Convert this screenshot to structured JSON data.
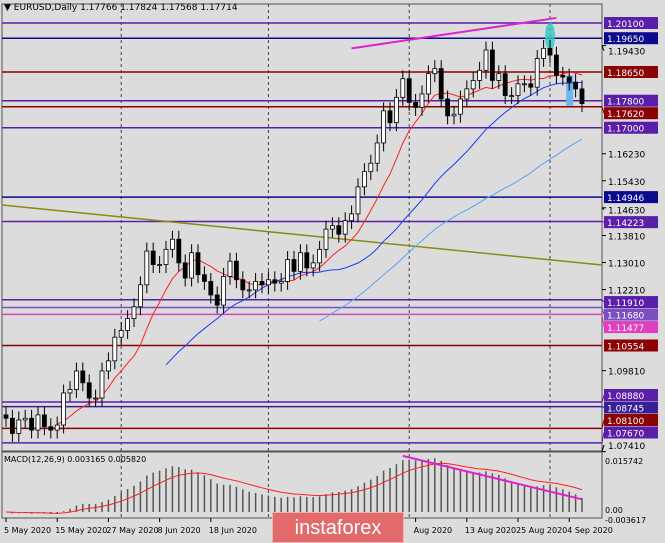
{
  "header": {
    "symbol": "EURUSD,Daily",
    "open": "1.17766",
    "high": "1.17824",
    "low": "1.17568",
    "close": "1.17714",
    "menu_icon": "triangle-down-icon"
  },
  "macd": {
    "label": "MACD(12,26,9) 0.003165 0.005820",
    "ticks": [
      "0.015742",
      "0.00",
      "-0.003617"
    ]
  },
  "watermark": "instaforex",
  "colors": {
    "background": "#dcdcdc",
    "bull": "#ffffff",
    "bear": "#000000",
    "purple": "#5a1fa8",
    "navy": "#0a0a8c",
    "darkred": "#8b0000",
    "magenta": "#e020d0",
    "trendline": "#8a8a10"
  },
  "chart_data": {
    "type": "candlestick",
    "symbol": "EURUSD",
    "timeframe": "Daily",
    "ylim": [
      1.0741,
      1.2063
    ],
    "y_ticks": [
      "1.19430",
      "1.16230",
      "1.15430",
      "1.14630",
      "1.13810",
      "1.13010",
      "1.12210",
      "1.09810",
      "1.07410"
    ],
    "x_ticks": [
      [
        "5 May 2020",
        0
      ],
      [
        "15 May 2020",
        8
      ],
      [
        "27 May 2020",
        16
      ],
      [
        "8 Jun 2020",
        24
      ],
      [
        "18 Jun 2020",
        32
      ],
      [
        "Aug 2020",
        64
      ],
      [
        "13 Aug 2020",
        72
      ],
      [
        "25 Aug 2020",
        80
      ],
      [
        "4 Sep 2020",
        88
      ]
    ],
    "levels": [
      {
        "price": "1.20100",
        "color": "#5a1fa8"
      },
      {
        "price": "1.19650",
        "color": "#0a0a8c"
      },
      {
        "price": "1.18650",
        "color": "#8b0000"
      },
      {
        "price": "1.17800",
        "color": "#5a1fa8"
      },
      {
        "price": "1.17620",
        "color": "#8b0000"
      },
      {
        "price": "1.17000",
        "color": "#5a1fa8"
      },
      {
        "price": "1.14946",
        "color": "#0a0a8c"
      },
      {
        "price": "1.14223",
        "color": "#5a1fa8"
      },
      {
        "price": "1.11910",
        "color": "#5a1fa8"
      },
      {
        "price": "1.11680",
        "color": "#7a50c0"
      },
      {
        "price": "1.11477",
        "color": "#e040c0"
      },
      {
        "price": "1.10554",
        "color": "#8b0000"
      },
      {
        "price": "1.08880",
        "color": "#5a1fa8"
      },
      {
        "price": "1.08745",
        "color": "#3a1f9a"
      },
      {
        "price": "1.08100",
        "color": "#8b0000"
      },
      {
        "price": "1.07670",
        "color": "#5a1fa8"
      }
    ],
    "closes": [
      1.084,
      1.0795,
      1.0835,
      1.084,
      1.0805,
      1.085,
      1.0815,
      1.0805,
      1.082,
      1.0915,
      1.0925,
      1.098,
      1.0945,
      1.09,
      1.09,
      1.098,
      1.101,
      1.108,
      1.11,
      1.1135,
      1.117,
      1.1235,
      1.1335,
      1.1295,
      1.1295,
      1.134,
      1.137,
      1.13,
      1.1255,
      1.133,
      1.1265,
      1.1245,
      1.1205,
      1.1175,
      1.126,
      1.1305,
      1.125,
      1.122,
      1.122,
      1.1245,
      1.1235,
      1.125,
      1.124,
      1.1245,
      1.131,
      1.1275,
      1.133,
      1.1285,
      1.13,
      1.134,
      1.14,
      1.141,
      1.1385,
      1.1425,
      1.1445,
      1.1525,
      1.157,
      1.1595,
      1.1655,
      1.175,
      1.1715,
      1.179,
      1.1845,
      1.1775,
      1.176,
      1.18,
      1.186,
      1.1875,
      1.1785,
      1.1735,
      1.174,
      1.1785,
      1.1815,
      1.184,
      1.187,
      1.193,
      1.184,
      1.186,
      1.1795,
      1.1795,
      1.183,
      1.183,
      1.182,
      1.1905,
      1.1935,
      1.1915,
      1.1855,
      1.185,
      1.1835,
      1.1815,
      1.17714
    ]
  }
}
